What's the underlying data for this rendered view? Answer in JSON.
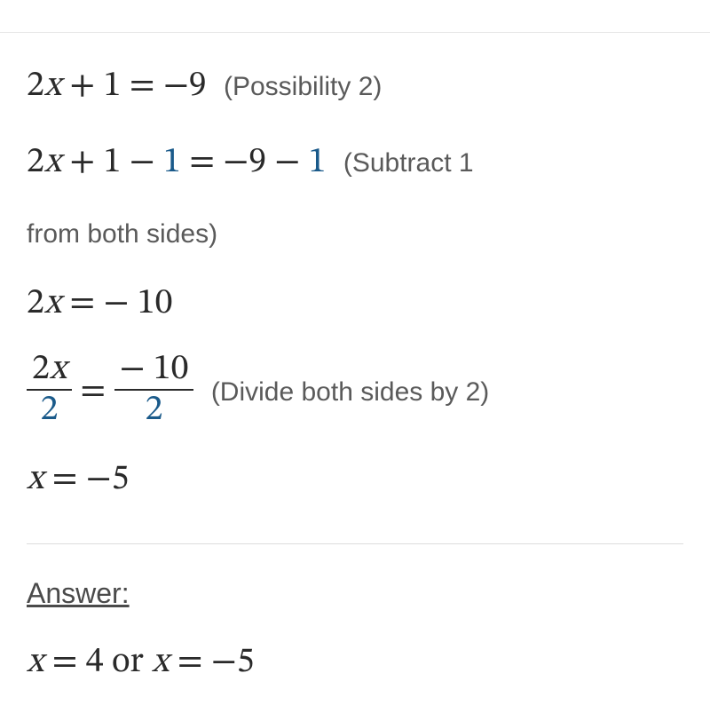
{
  "colors": {
    "background": "#ffffff",
    "text_main": "#2a2a2a",
    "text_annot": "#5a5a5a",
    "highlight": "#1a5a8a",
    "divider": "#dcdcdc"
  },
  "typography": {
    "math_fontsize_pt": 30,
    "annot_fontsize_pt": 22,
    "annot_fontweight": 300,
    "math_family": "serif",
    "annot_family": "sans-serif"
  },
  "steps": {
    "s1": {
      "lhs_a": "2",
      "lhs_b": "x",
      "lhs_c": " + 1 = −9",
      "annot": "(Possibility 2)"
    },
    "s2": {
      "part1": "2",
      "partx": "x",
      "part2": " + 1 − ",
      "hl1": "1",
      "part3": " = −9 − ",
      "hl2": "1",
      "annot_a": "(Subtract 1",
      "annot_b": "from both sides)"
    },
    "s3": {
      "a": "2",
      "x": "x",
      "rest": " = − 10"
    },
    "s4": {
      "num1a": "2",
      "num1x": "x",
      "den1": "2",
      "mid": " = ",
      "num2": "− 10",
      "den2": "2",
      "annot": "(Divide both sides by 2)"
    },
    "s5": {
      "x": "x",
      "rest": " = −5"
    }
  },
  "answer": {
    "heading": "Answer:",
    "x1lbl": "x",
    "x1": " = 4 or ",
    "x2lbl": "x",
    "x2": " = −5"
  }
}
